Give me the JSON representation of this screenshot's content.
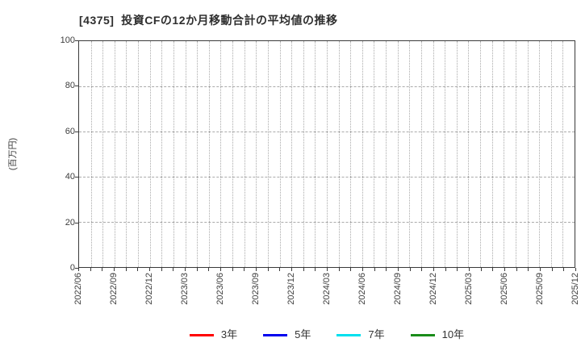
{
  "chart_data": {
    "type": "line",
    "title": "[4375]  投資CFの12か月移動合計の平均値の推移",
    "ylabel": "(百万円)",
    "ylim": [
      0,
      100
    ],
    "yticks": [
      0,
      20,
      40,
      60,
      80,
      100
    ],
    "x_tick_labels": [
      "2022/06",
      "2022/09",
      "2022/12",
      "2023/03",
      "2023/06",
      "2023/09",
      "2023/12",
      "2024/03",
      "2024/06",
      "2024/09",
      "2024/12",
      "2025/03",
      "2025/06",
      "2025/09",
      "2025/12"
    ],
    "x_minor_ticks_per_label": 3,
    "grid": true,
    "legend_position": "bottom",
    "series": [
      {
        "name": "3年",
        "color": "#ff0000",
        "values": []
      },
      {
        "name": "5年",
        "color": "#0000ee",
        "values": []
      },
      {
        "name": "7年",
        "color": "#00e0ee",
        "values": []
      },
      {
        "name": "10年",
        "color": "#1a8c1a",
        "values": []
      }
    ]
  }
}
